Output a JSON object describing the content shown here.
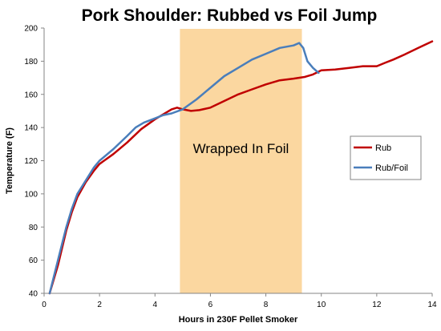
{
  "chart_data": {
    "type": "line",
    "title": "Pork Shoulder: Rubbed vs Foil Jump",
    "xlabel": "Hours in 230F Pellet Smoker",
    "ylabel": "Temperature (F)",
    "xlim": [
      0,
      14
    ],
    "ylim": [
      40,
      200
    ],
    "xticks": [
      0,
      2,
      4,
      6,
      8,
      10,
      12,
      14
    ],
    "yticks": [
      40,
      60,
      80,
      100,
      120,
      140,
      160,
      180,
      200
    ],
    "grid": false,
    "legend_position": "right",
    "annotation": {
      "text": "Wrapped In Foil",
      "x_range": [
        4.9,
        9.3
      ],
      "color": "#fbd7a0"
    },
    "series": [
      {
        "name": "Rub",
        "color": "#c00000",
        "points": [
          [
            0.2,
            40
          ],
          [
            0.5,
            57
          ],
          [
            0.8,
            78
          ],
          [
            1.0,
            89
          ],
          [
            1.2,
            98
          ],
          [
            1.5,
            107
          ],
          [
            1.8,
            114
          ],
          [
            2.0,
            118
          ],
          [
            2.5,
            124
          ],
          [
            3.0,
            131
          ],
          [
            3.5,
            139
          ],
          [
            4.0,
            145
          ],
          [
            4.3,
            148
          ],
          [
            4.6,
            151
          ],
          [
            4.8,
            152
          ],
          [
            5.0,
            151
          ],
          [
            5.3,
            150
          ],
          [
            5.6,
            150.5
          ],
          [
            6.0,
            152
          ],
          [
            6.5,
            156
          ],
          [
            7.0,
            160
          ],
          [
            7.5,
            163
          ],
          [
            8.0,
            166
          ],
          [
            8.5,
            168.5
          ],
          [
            9.0,
            169.5
          ],
          [
            9.4,
            170.5
          ],
          [
            9.7,
            172
          ],
          [
            10.0,
            174.5
          ],
          [
            10.5,
            175
          ],
          [
            11.0,
            176
          ],
          [
            11.5,
            177
          ],
          [
            12.0,
            177
          ],
          [
            12.3,
            179
          ],
          [
            12.6,
            181
          ],
          [
            13.0,
            184
          ],
          [
            13.5,
            188
          ],
          [
            14.0,
            192
          ]
        ]
      },
      {
        "name": "Rub/Foil",
        "color": "#4a7ebb",
        "points": [
          [
            0.2,
            40
          ],
          [
            0.5,
            60
          ],
          [
            0.8,
            80
          ],
          [
            1.0,
            91
          ],
          [
            1.2,
            100
          ],
          [
            1.5,
            108
          ],
          [
            1.8,
            116
          ],
          [
            2.0,
            120
          ],
          [
            2.5,
            127
          ],
          [
            3.0,
            135
          ],
          [
            3.3,
            140
          ],
          [
            3.6,
            143
          ],
          [
            4.0,
            145.5
          ],
          [
            4.3,
            147.5
          ],
          [
            4.6,
            148.5
          ],
          [
            5.0,
            151
          ],
          [
            5.5,
            157
          ],
          [
            6.0,
            164
          ],
          [
            6.5,
            171
          ],
          [
            7.0,
            176
          ],
          [
            7.5,
            181
          ],
          [
            8.0,
            184.5
          ],
          [
            8.5,
            188
          ],
          [
            9.0,
            189.5
          ],
          [
            9.2,
            191
          ],
          [
            9.35,
            188
          ],
          [
            9.5,
            180
          ],
          [
            9.7,
            176
          ],
          [
            9.9,
            173
          ]
        ]
      }
    ]
  }
}
